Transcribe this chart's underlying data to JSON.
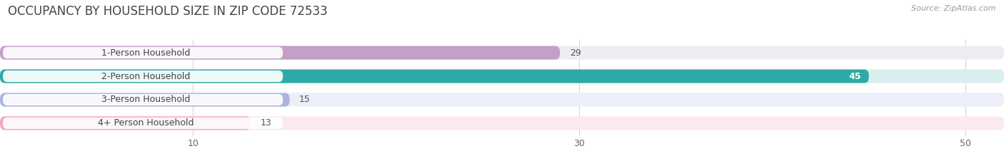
{
  "title": "OCCUPANCY BY HOUSEHOLD SIZE IN ZIP CODE 72533",
  "source": "Source: ZipAtlas.com",
  "categories": [
    "1-Person Household",
    "2-Person Household",
    "3-Person Household",
    "4+ Person Household"
  ],
  "values": [
    29,
    45,
    15,
    13
  ],
  "bar_colors": [
    "#c4a0c8",
    "#2eaaa6",
    "#aab2e0",
    "#f4a8bc"
  ],
  "bar_bg_colors": [
    "#eeecf2",
    "#d8efee",
    "#eceef8",
    "#fce8ef"
  ],
  "value_inside": [
    false,
    true,
    false,
    false
  ],
  "xlim": [
    0,
    52
  ],
  "xticks": [
    10,
    30,
    50
  ],
  "bar_height": 0.58,
  "figsize": [
    14.06,
    2.33
  ],
  "dpi": 100,
  "title_fontsize": 12,
  "label_fontsize": 9,
  "value_fontsize": 9,
  "tick_fontsize": 9,
  "source_fontsize": 8,
  "background_color": "#ffffff"
}
